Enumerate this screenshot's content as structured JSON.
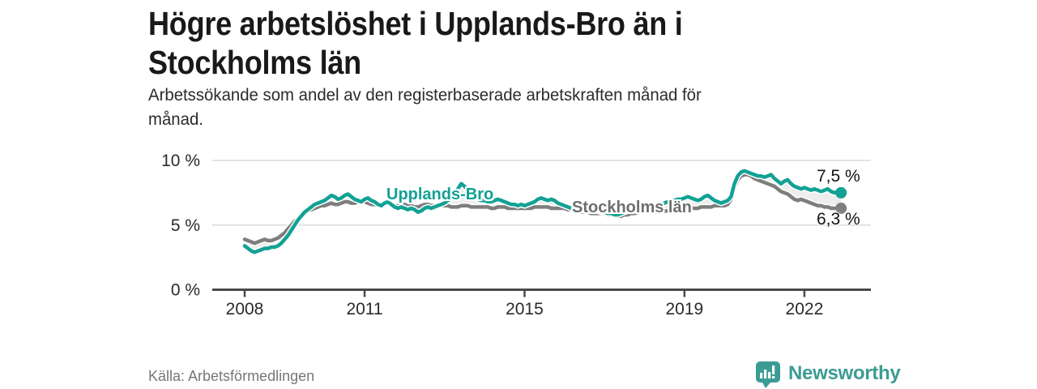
{
  "header": {
    "title_lines": [
      "Högre arbetslöshet i Upplands-Bro än i",
      "Stockholms län"
    ],
    "subtitle_lines": [
      "Arbetssökande som andel av den registerbaserade arbetskraften månad för",
      "månad."
    ]
  },
  "footer": {
    "source": "Källa: Arbetsförmedlingen",
    "brand": "Newsworthy",
    "logo_icon": "bar-chart-speech-bubble-icon",
    "brand_color": "#3b9c93"
  },
  "chart_data": {
    "type": "line",
    "title": "Högre arbetslöshet i Upplands-Bro än i Stockholms län",
    "subtitle": "Arbetssökande som andel av den registerbaserade arbetskraften månad för månad.",
    "unit": "%",
    "frequency": "monthly",
    "x_start": "2008-01",
    "x_end": "2022-12",
    "ylim": [
      0,
      10
    ],
    "grid": "horizontal",
    "legend_position": "inline-labels",
    "yticks": [
      {
        "value": 0,
        "label": "0 %"
      },
      {
        "value": 5,
        "label": "5 %"
      },
      {
        "value": 10,
        "label": "10 %"
      }
    ],
    "xticks": [
      {
        "year": 2008,
        "label": "2008"
      },
      {
        "year": 2011,
        "label": "2011"
      },
      {
        "year": 2015,
        "label": "2015"
      },
      {
        "year": 2019,
        "label": "2019"
      },
      {
        "year": 2022,
        "label": "2022"
      }
    ],
    "colors": {
      "upplands_bro": "#12a195",
      "stockholms_lan": "#7e7e7e",
      "gridline": "#dadada",
      "axis": "#4a4a4a",
      "between_fill": "rgba(130,130,130,0.14)"
    },
    "series": [
      {
        "name": "Upplands-Bro",
        "color": "#12a195",
        "end_label": "7,5 %",
        "end_value": 7.5,
        "values": [
          3.4,
          3.2,
          3.0,
          2.9,
          3.0,
          3.1,
          3.2,
          3.2,
          3.3,
          3.3,
          3.4,
          3.6,
          3.9,
          4.2,
          4.6,
          5.0,
          5.4,
          5.7,
          6.0,
          6.2,
          6.4,
          6.6,
          6.7,
          6.8,
          6.9,
          7.1,
          7.3,
          7.2,
          7.0,
          7.1,
          7.3,
          7.4,
          7.2,
          7.0,
          6.9,
          6.8,
          7.0,
          7.1,
          6.9,
          6.8,
          6.6,
          6.5,
          6.7,
          6.8,
          6.6,
          6.4,
          6.3,
          6.4,
          6.3,
          6.2,
          6.3,
          6.2,
          6.0,
          6.1,
          6.3,
          6.4,
          6.3,
          6.4,
          6.5,
          6.6,
          6.7,
          6.9,
          7.1,
          7.4,
          7.8,
          8.2,
          8.0,
          7.7,
          7.4,
          7.2,
          7.0,
          6.9,
          6.9,
          6.8,
          6.8,
          6.9,
          7.0,
          6.9,
          6.8,
          6.7,
          6.6,
          6.6,
          6.5,
          6.6,
          6.5,
          6.6,
          6.7,
          6.8,
          7.0,
          7.1,
          7.0,
          6.9,
          7.0,
          6.9,
          6.7,
          6.6,
          6.5,
          6.4,
          6.3,
          6.3,
          6.2,
          6.2,
          6.3,
          6.3,
          6.2,
          6.1,
          6.1,
          6.0,
          6.0,
          5.9,
          5.9,
          5.8,
          5.8,
          5.9,
          6.0,
          6.1,
          6.1,
          6.2,
          6.2,
          6.3,
          6.3,
          6.4,
          6.4,
          6.5,
          6.5,
          6.6,
          6.7,
          6.8,
          6.8,
          6.9,
          7.0,
          7.0,
          7.1,
          7.2,
          7.1,
          7.0,
          6.9,
          7.0,
          7.2,
          7.3,
          7.1,
          6.9,
          6.8,
          6.7,
          6.8,
          6.9,
          7.2,
          8.2,
          8.8,
          9.1,
          9.2,
          9.1,
          9.0,
          8.9,
          8.8,
          8.8,
          8.7,
          8.8,
          8.9,
          8.6,
          8.4,
          8.2,
          8.4,
          8.5,
          8.2,
          8.0,
          7.9,
          7.8,
          7.9,
          7.8,
          7.7,
          7.8,
          7.7,
          7.6,
          7.7,
          7.8,
          7.6,
          7.5,
          7.6,
          7.5
        ]
      },
      {
        "name": "Stockholms län",
        "color": "#7e7e7e",
        "end_label": "6,3 %",
        "end_value": 6.3,
        "values": [
          3.9,
          3.8,
          3.7,
          3.6,
          3.7,
          3.8,
          3.9,
          3.8,
          3.8,
          3.9,
          4.0,
          4.2,
          4.4,
          4.7,
          5.0,
          5.3,
          5.5,
          5.7,
          5.9,
          6.1,
          6.2,
          6.3,
          6.4,
          6.5,
          6.5,
          6.6,
          6.7,
          6.6,
          6.6,
          6.7,
          6.8,
          6.8,
          6.7,
          6.7,
          6.8,
          6.8,
          6.8,
          6.7,
          6.6,
          6.6,
          6.5,
          6.5,
          6.6,
          6.7,
          6.6,
          6.5,
          6.5,
          6.6,
          6.6,
          6.5,
          6.5,
          6.4,
          6.4,
          6.5,
          6.6,
          6.6,
          6.5,
          6.5,
          6.5,
          6.5,
          6.5,
          6.5,
          6.4,
          6.4,
          6.4,
          6.5,
          6.5,
          6.5,
          6.4,
          6.4,
          6.4,
          6.4,
          6.4,
          6.4,
          6.3,
          6.3,
          6.4,
          6.4,
          6.4,
          6.3,
          6.3,
          6.3,
          6.3,
          6.3,
          6.3,
          6.3,
          6.3,
          6.4,
          6.4,
          6.4,
          6.4,
          6.4,
          6.3,
          6.3,
          6.3,
          6.3,
          6.3,
          6.2,
          6.2,
          6.1,
          6.1,
          6.0,
          6.0,
          6.0,
          5.9,
          5.9,
          5.9,
          5.9,
          5.9,
          5.8,
          5.8,
          5.8,
          5.7,
          5.7,
          5.8,
          5.8,
          5.9,
          5.9,
          6.0,
          6.0,
          6.0,
          6.0,
          6.0,
          6.0,
          6.0,
          6.0,
          6.1,
          6.1,
          6.1,
          6.1,
          6.2,
          6.2,
          6.2,
          6.3,
          6.3,
          6.3,
          6.3,
          6.4,
          6.4,
          6.4,
          6.4,
          6.5,
          6.5,
          6.5,
          6.5,
          6.6,
          7.0,
          7.9,
          8.5,
          8.8,
          8.9,
          8.9,
          8.8,
          8.6,
          8.5,
          8.4,
          8.3,
          8.2,
          8.1,
          8.0,
          7.8,
          7.6,
          7.5,
          7.4,
          7.2,
          7.0,
          6.9,
          7.0,
          6.9,
          6.8,
          6.7,
          6.6,
          6.5,
          6.5,
          6.4,
          6.4,
          6.3,
          6.3,
          6.3,
          6.3
        ]
      }
    ]
  }
}
